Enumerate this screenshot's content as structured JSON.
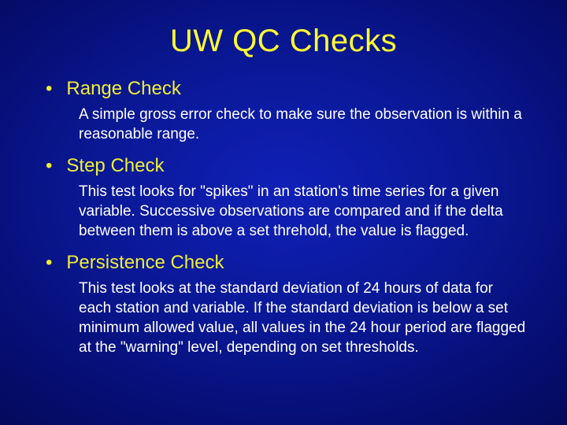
{
  "colors": {
    "title": "#ffff33",
    "heading": "#eeee33",
    "body": "#ffffff",
    "bg_center": "#1020b8",
    "bg_edge": "#020740"
  },
  "title": "UW QC Checks",
  "items": [
    {
      "heading": "Range Check",
      "desc": "A simple gross error check to make sure the observation is within a reasonable range."
    },
    {
      "heading": "Step Check",
      "desc": "This test looks for \"spikes\" in an station's time series for a given variable. Successive observations are compared and if the delta between them is above a set threhold, the value is flagged."
    },
    {
      "heading": "Persistence Check",
      "desc": "This test looks at the standard deviation of 24 hours of data for each station and variable. If the standard deviation is below a set minimum allowed value, all values in the 24 hour period are flagged at the \"warning\" level, depending on set thresholds."
    }
  ]
}
